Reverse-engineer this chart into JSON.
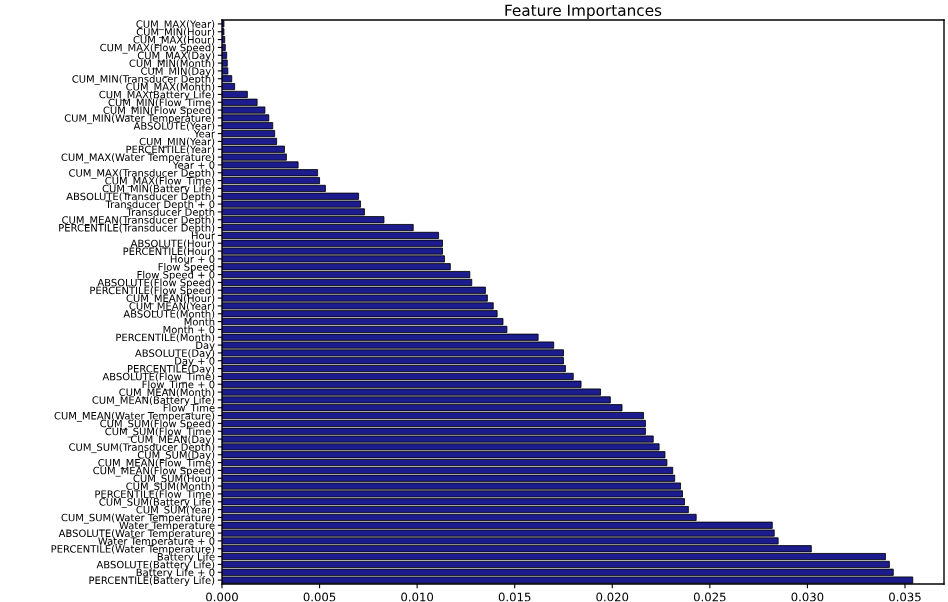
{
  "chart_data": {
    "type": "bar",
    "orientation": "horizontal",
    "title": "Feature Importances",
    "categories": [
      "CUM_MAX(Year)",
      "CUM_MIN(Hour)",
      "CUM_MAX(Hour)",
      "CUM_MAX(Flow Speed)",
      "CUM_MAX(Day)",
      "CUM_MIN(Month)",
      "CUM_MIN(Day)",
      "CUM_MIN(Transducer Depth)",
      "CUM_MAX(Month)",
      "CUM_MAX(Battery Life)",
      "CUM_MIN(Flow_Time)",
      "CUM_MIN(Flow Speed)",
      "CUM_MIN(Water Temperature)",
      "ABSOLUTE(Year)",
      "Year",
      "CUM_MIN(Year)",
      "PERCENTILE(Year)",
      "CUM_MAX(Water Temperature)",
      "Year + 0",
      "CUM_MAX(Transducer Depth)",
      "CUM_MAX(Flow_Time)",
      "CUM_MIN(Battery Life)",
      "ABSOLUTE(Transducer Depth)",
      "Transducer Depth + 0",
      "Transducer Depth",
      "CUM_MEAN(Transducer Depth)",
      "PERCENTILE(Transducer Depth)",
      "Hour",
      "ABSOLUTE(Hour)",
      "PERCENTILE(Hour)",
      "Hour + 0",
      "Flow Speed",
      "Flow Speed + 0",
      "ABSOLUTE(Flow Speed)",
      "PERCENTILE(Flow Speed)",
      "CUM_MEAN(Hour)",
      "CUM_MEAN(Year)",
      "ABSOLUTE(Month)",
      "Month",
      "Month + 0",
      "PERCENTILE(Month)",
      "Day",
      "ABSOLUTE(Day)",
      "Day + 0",
      "PERCENTILE(Day)",
      "ABSOLUTE(Flow_Time)",
      "Flow_Time + 0",
      "CUM_MEAN(Month)",
      "CUM_MEAN(Battery Life)",
      "Flow_Time",
      "CUM_MEAN(Water Temperature)",
      "CUM_SUM(Flow Speed)",
      "CUM_SUM(Flow_Time)",
      "CUM_MEAN(Day)",
      "CUM_SUM(Transducer Depth)",
      "CUM_SUM(Day)",
      "CUM_MEAN(Flow_Time)",
      "CUM_MEAN(Flow Speed)",
      "CUM_SUM(Hour)",
      "CUM_SUM(Month)",
      "PERCENTILE(Flow_Time)",
      "CUM_SUM(Battery Life)",
      "CUM_SUM(Year)",
      "CUM_SUM(Water Temperature)",
      "Water Temperature",
      "ABSOLUTE(Water Temperature)",
      "Water Temperature + 0",
      "PERCENTILE(Water Temperature)",
      "Battery Life",
      "ABSOLUTE(Battery Life)",
      "Battery Life + 0",
      "PERCENTILE(Battery Life)"
    ],
    "values": [
      0.0001,
      0.0001,
      0.00014,
      0.00017,
      0.00024,
      0.00027,
      0.0003,
      0.0005,
      0.00065,
      0.0013,
      0.0018,
      0.0022,
      0.0024,
      0.0026,
      0.0027,
      0.0028,
      0.0032,
      0.0033,
      0.0039,
      0.0049,
      0.005,
      0.0053,
      0.007,
      0.0071,
      0.0073,
      0.0083,
      0.0098,
      0.0111,
      0.0113,
      0.0113,
      0.0114,
      0.0117,
      0.0127,
      0.0128,
      0.0135,
      0.0136,
      0.0139,
      0.0141,
      0.0144,
      0.0146,
      0.0162,
      0.017,
      0.0175,
      0.0175,
      0.0176,
      0.018,
      0.0184,
      0.0194,
      0.0199,
      0.0205,
      0.0216,
      0.0217,
      0.0217,
      0.0221,
      0.0224,
      0.0227,
      0.0228,
      0.0231,
      0.0232,
      0.0235,
      0.0236,
      0.0237,
      0.0239,
      0.0243,
      0.0282,
      0.0283,
      0.0285,
      0.0302,
      0.034,
      0.0342,
      0.0344,
      0.0354
    ],
    "color": "#1c1c8e",
    "xlim": [
      0,
      0.037
    ],
    "xticks": [
      {
        "value": 0,
        "label": "0.000"
      },
      {
        "value": 0.005,
        "label": "0.005"
      },
      {
        "value": 0.01,
        "label": "0.010"
      },
      {
        "value": 0.015,
        "label": "0.015"
      },
      {
        "value": 0.02,
        "label": "0.020"
      },
      {
        "value": 0.025,
        "label": "0.025"
      },
      {
        "value": 0.03,
        "label": "0.030"
      },
      {
        "value": 0.035,
        "label": "0.035"
      }
    ],
    "grid": false,
    "legend": false
  }
}
